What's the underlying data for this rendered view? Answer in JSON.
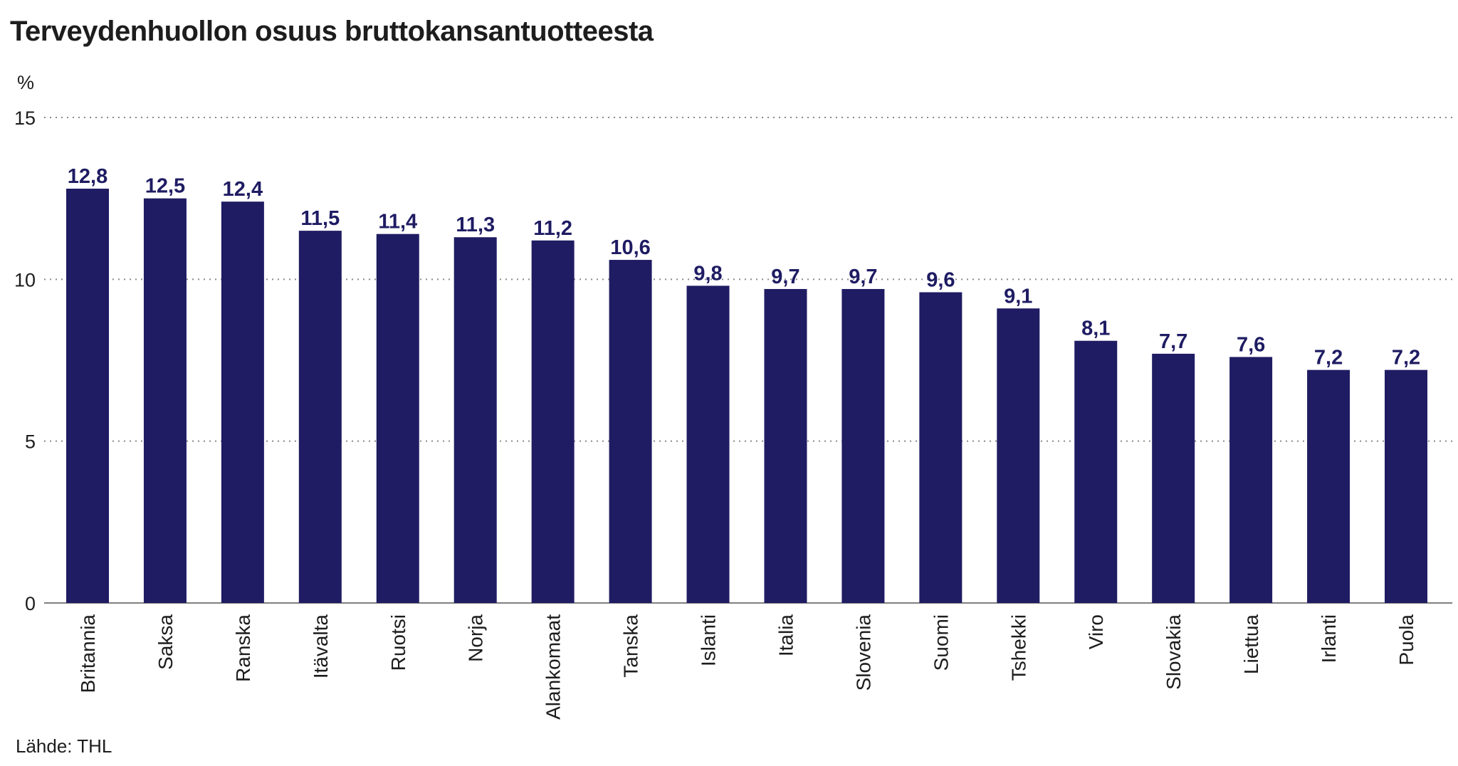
{
  "title": "Terveydenhuollon osuus bruttokansantuotteesta",
  "source": "Lähde: THL",
  "chart_data": {
    "type": "bar",
    "title": "Terveydenhuollon osuus bruttokansantuotteesta",
    "ylabel": "%",
    "xlabel": "",
    "ylim": [
      0,
      15
    ],
    "yticks": [
      "0",
      "5",
      "10",
      "15"
    ],
    "grid": true,
    "bar_color": "#1f1c63",
    "categories": [
      "Britannia",
      "Saksa",
      "Ranska",
      "Itävalta",
      "Ruotsi",
      "Norja",
      "Alankomaat",
      "Tanska",
      "Islanti",
      "Italia",
      "Slovenia",
      "Suomi",
      "Tshekki",
      "Viro",
      "Slovakia",
      "Liettua",
      "Irlanti",
      "Puola"
    ],
    "values": [
      12.8,
      12.5,
      12.4,
      11.5,
      11.4,
      11.3,
      11.2,
      10.6,
      9.8,
      9.7,
      9.7,
      9.6,
      9.1,
      8.1,
      7.7,
      7.6,
      7.2,
      7.2
    ],
    "value_labels": [
      "12,8",
      "12,5",
      "12,4",
      "11,5",
      "11,4",
      "11,3",
      "11,2",
      "10,6",
      "9,8",
      "9,7",
      "9,7",
      "9,6",
      "9,1",
      "8,1",
      "7,7",
      "7,6",
      "7,2",
      "7,2"
    ]
  }
}
